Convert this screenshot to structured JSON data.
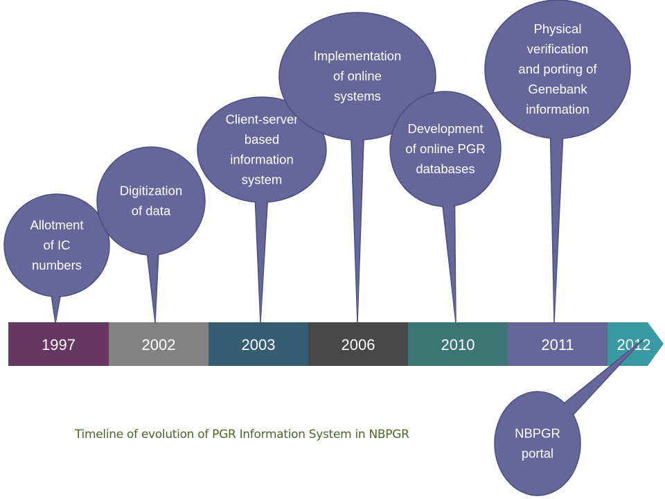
{
  "caption": "Timeline of evolution of PGR Information System in NBPGR",
  "colors": {
    "bubble": "#65679b",
    "bubble_stroke": "#4b4d7c",
    "caption": "#4f6228"
  },
  "timeline": [
    {
      "year": "1997",
      "color": "#663763"
    },
    {
      "year": "2002",
      "color": "#828282"
    },
    {
      "year": "2003",
      "color": "#355e75"
    },
    {
      "year": "2006",
      "color": "#484848"
    },
    {
      "year": "2010",
      "color": "#3c7575"
    },
    {
      "year": "2011",
      "color": "#65679b"
    },
    {
      "year": "2012",
      "color": "#3a9aa3"
    }
  ],
  "events": [
    {
      "year": "1997",
      "lines": [
        "Allotment",
        "of IC",
        "numbers"
      ]
    },
    {
      "year": "2002",
      "lines": [
        "Digitization",
        "of data"
      ]
    },
    {
      "year": "2003",
      "lines": [
        "Client-server",
        "based",
        "information",
        "system"
      ]
    },
    {
      "year": "2006",
      "lines": [
        "Implementation",
        "of online",
        "systems"
      ]
    },
    {
      "year": "2010",
      "lines": [
        "Development",
        "of online PGR",
        "databases"
      ]
    },
    {
      "year": "2011",
      "lines": [
        "Physical",
        "verification",
        "and porting of",
        "Genebank",
        "information"
      ]
    },
    {
      "year": "2012",
      "lines": [
        "NBPGR",
        "portal"
      ]
    }
  ]
}
